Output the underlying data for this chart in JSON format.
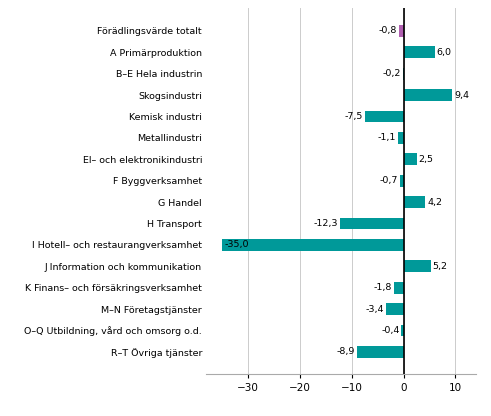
{
  "categories": [
    "R–T Övriga tjänster",
    "O–Q Utbildning, vård och omsorg o.d.",
    "M–N Företagstjänster",
    "K Finans– och försäkringsverksamhet",
    "J Information och kommunikation",
    "I Hotell– och restaurangverksamhet",
    "H Transport",
    "G Handel",
    "F Byggverksamhet",
    "El– och elektronikindustri",
    "Metallindustri",
    "Kemisk industri",
    "Skogsindustri",
    "B–E Hela industrin",
    "A Primärproduktion",
    "Förädlingsvärde totalt"
  ],
  "values": [
    -8.9,
    -0.4,
    -3.4,
    -1.8,
    5.2,
    -35.0,
    -12.3,
    4.2,
    -0.7,
    2.5,
    -1.1,
    -7.5,
    9.4,
    -0.2,
    6.0,
    -0.8
  ],
  "bar_color_default": "#009999",
  "bar_color_special": "#b05fb0",
  "special_index": 15,
  "xlim": [
    -38,
    14
  ],
  "xticks": [
    -30,
    -20,
    -10,
    0,
    10
  ],
  "label_fontsize": 6.8,
  "tick_fontsize": 7.5,
  "value_label_fontsize": 6.8,
  "background_color": "#ffffff",
  "grid_color": "#cccccc",
  "bar_height": 0.55
}
